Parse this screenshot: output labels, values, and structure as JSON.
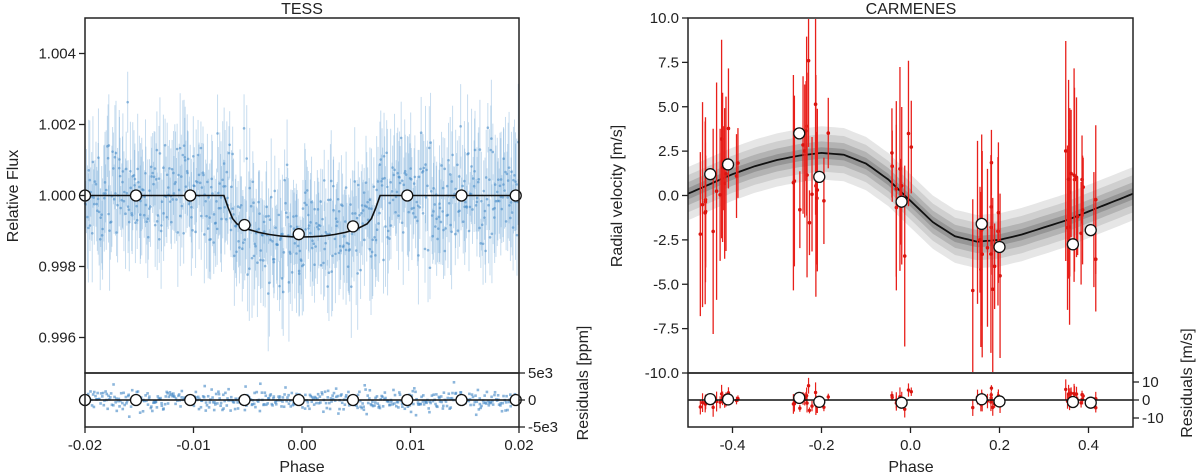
{
  "chart_data": [
    {
      "type": "scatter",
      "title": "TESS",
      "xlabel": "Phase",
      "ylabel": "Relative Flux",
      "residual_label": "Residuals [ppm]",
      "xlim": [
        -0.02,
        0.02
      ],
      "ylim": [
        0.995,
        1.005
      ],
      "residual_ylim": [
        -5000,
        5000
      ],
      "x_ticks": [
        -0.02,
        -0.01,
        0.0,
        0.01,
        0.02
      ],
      "x_tick_labels": [
        "-0.02",
        "-0.01",
        "0.00",
        "0.01",
        "0.02"
      ],
      "y_ticks": [
        0.996,
        0.998,
        1.0,
        1.002,
        1.004
      ],
      "y_tick_labels": [
        "0.996",
        "0.998",
        "1.000",
        "1.002",
        "1.004"
      ],
      "residual_ticks": [
        5000,
        0,
        -5000
      ],
      "residual_tick_labels": [
        "5e3",
        "0",
        "-5e3"
      ],
      "model": {
        "name": "transit model",
        "x": [
          -0.02,
          -0.0072,
          -0.0068,
          -0.0064,
          -0.006,
          -0.005,
          -0.004,
          -0.003,
          -0.002,
          -0.001,
          0.0,
          0.001,
          0.002,
          0.003,
          0.004,
          0.005,
          0.006,
          0.0064,
          0.0068,
          0.0072,
          0.02
        ],
        "y": [
          1.0,
          1.0,
          0.99965,
          0.99935,
          0.9992,
          0.99905,
          0.99896,
          0.9989,
          0.99886,
          0.99884,
          0.99883,
          0.99884,
          0.99886,
          0.9989,
          0.99896,
          0.99905,
          0.9992,
          0.99935,
          0.99965,
          1.0,
          1.0
        ]
      },
      "binned": {
        "x": [
          -0.02,
          -0.0153,
          -0.0103,
          -0.0053,
          -0.0003,
          0.0047,
          0.0097,
          0.0147,
          0.0197
        ],
        "y": [
          1.0,
          1.0,
          1.0,
          0.99917,
          0.99891,
          0.99913,
          1.0,
          1.0,
          1.0
        ],
        "residual": [
          0,
          0,
          0,
          0,
          0,
          0,
          0,
          0,
          0
        ]
      }
    },
    {
      "type": "scatter",
      "title": "CARMENES",
      "xlabel": "Phase",
      "ylabel": "Radial velocity [m/s]",
      "residual_label": "Residuals [m/s]",
      "xlim": [
        -0.5,
        0.5
      ],
      "ylim": [
        -10.0,
        10.0
      ],
      "residual_ylim": [
        -15,
        15
      ],
      "x_ticks": [
        -0.4,
        -0.2,
        0.0,
        0.2,
        0.4
      ],
      "x_tick_labels": [
        "-0.4",
        "-0.2",
        "0.0",
        "0.2",
        "0.4"
      ],
      "y_ticks": [
        -10.0,
        -7.5,
        -5.0,
        -2.5,
        0.0,
        2.5,
        5.0,
        7.5,
        10.0
      ],
      "y_tick_labels": [
        "-10.0",
        "-7.5",
        "-5.0",
        "-2.5",
        "0.0",
        "2.5",
        "5.0",
        "7.5",
        "10.0"
      ],
      "residual_ticks": [
        10,
        0,
        -10
      ],
      "residual_tick_labels": [
        "10",
        "0",
        "-10"
      ],
      "model": {
        "name": "RV model",
        "x": [
          -0.5,
          -0.45,
          -0.4,
          -0.35,
          -0.3,
          -0.25,
          -0.2,
          -0.15,
          -0.1,
          -0.05,
          0.0,
          0.05,
          0.1,
          0.15,
          0.2,
          0.25,
          0.3,
          0.35,
          0.4,
          0.45,
          0.5
        ],
        "y": [
          0.1,
          0.65,
          1.2,
          1.65,
          2.0,
          2.25,
          2.4,
          2.3,
          1.8,
          0.9,
          -0.3,
          -1.5,
          -2.3,
          -2.6,
          -2.5,
          -2.2,
          -1.8,
          -1.4,
          -0.9,
          -0.4,
          0.1
        ]
      },
      "binned": {
        "x": [
          -0.45,
          -0.41,
          -0.25,
          -0.205,
          -0.02,
          0.16,
          0.2,
          0.365,
          0.405
        ],
        "y": [
          1.2,
          1.75,
          3.5,
          1.05,
          -0.35,
          -1.6,
          -2.9,
          -2.75,
          -1.95
        ],
        "residual": [
          0.5,
          0.3,
          1.2,
          -1.0,
          -1.5,
          0.4,
          -0.8,
          -1.1,
          -1.5
        ]
      }
    }
  ]
}
